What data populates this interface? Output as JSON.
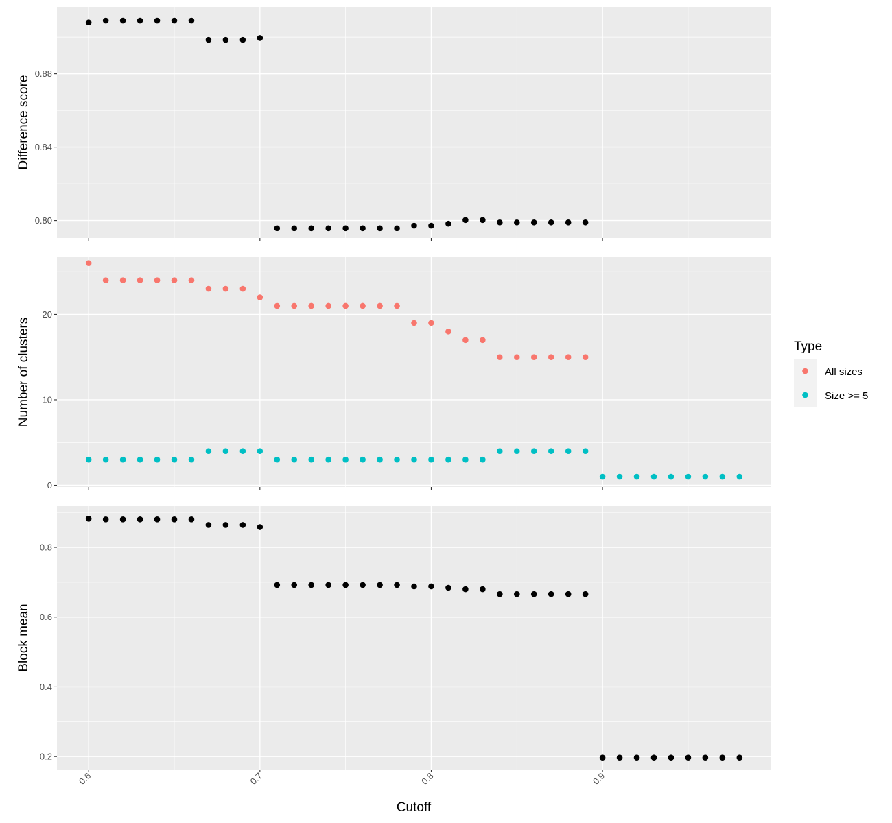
{
  "chart_data": {
    "type": "scatter",
    "xlabel": "Cutoff",
    "x_ticks": [
      0.6,
      0.7,
      0.8,
      0.9
    ],
    "x_tick_labels": [
      "0.6",
      "0.7",
      "0.8",
      "0.9"
    ],
    "xlim": [
      0.5815,
      0.9985
    ],
    "grid": true,
    "panel_background": "#ebebeb",
    "legend": {
      "title": "Type",
      "placement": "right",
      "entries": [
        {
          "label": "All sizes",
          "color": "#f8766d"
        },
        {
          "label": "Size >= 5",
          "color": "#00bfc4"
        }
      ]
    },
    "panels": [
      {
        "ylabel": "Difference score",
        "ylim": [
          0.7905,
          0.9165
        ],
        "y_ticks": [
          0.8,
          0.84,
          0.88
        ],
        "y_tick_labels": [
          "0.80",
          "0.84",
          "0.88"
        ],
        "series": [
          {
            "color": "#000000",
            "points": [
              [
                0.6,
                0.908
              ],
              [
                0.61,
                0.909
              ],
              [
                0.62,
                0.909
              ],
              [
                0.63,
                0.909
              ],
              [
                0.64,
                0.909
              ],
              [
                0.65,
                0.909
              ],
              [
                0.66,
                0.909
              ],
              [
                0.67,
                0.8985
              ],
              [
                0.68,
                0.8985
              ],
              [
                0.69,
                0.8985
              ],
              [
                0.7,
                0.8995
              ],
              [
                0.71,
                0.7958
              ],
              [
                0.72,
                0.7958
              ],
              [
                0.73,
                0.7958
              ],
              [
                0.74,
                0.7958
              ],
              [
                0.75,
                0.7958
              ],
              [
                0.76,
                0.7958
              ],
              [
                0.77,
                0.7958
              ],
              [
                0.78,
                0.7958
              ],
              [
                0.79,
                0.7972
              ],
              [
                0.8,
                0.7972
              ],
              [
                0.81,
                0.7983
              ],
              [
                0.82,
                0.8003
              ],
              [
                0.83,
                0.8003
              ],
              [
                0.84,
                0.799
              ],
              [
                0.85,
                0.799
              ],
              [
                0.86,
                0.799
              ],
              [
                0.87,
                0.799
              ],
              [
                0.88,
                0.799
              ],
              [
                0.89,
                0.799
              ]
            ]
          }
        ]
      },
      {
        "ylabel": "Number of clusters",
        "ylim": [
          -0.2,
          26.7
        ],
        "y_ticks": [
          0,
          10,
          20
        ],
        "y_tick_labels": [
          "0",
          "10",
          "20"
        ],
        "series": [
          {
            "name": "All sizes",
            "color": "#f8766d",
            "points": [
              [
                0.6,
                26
              ],
              [
                0.61,
                24
              ],
              [
                0.62,
                24
              ],
              [
                0.63,
                24
              ],
              [
                0.64,
                24
              ],
              [
                0.65,
                24
              ],
              [
                0.66,
                24
              ],
              [
                0.67,
                23
              ],
              [
                0.68,
                23
              ],
              [
                0.69,
                23
              ],
              [
                0.7,
                22
              ],
              [
                0.71,
                21
              ],
              [
                0.72,
                21
              ],
              [
                0.73,
                21
              ],
              [
                0.74,
                21
              ],
              [
                0.75,
                21
              ],
              [
                0.76,
                21
              ],
              [
                0.77,
                21
              ],
              [
                0.78,
                21
              ],
              [
                0.79,
                19
              ],
              [
                0.8,
                19
              ],
              [
                0.81,
                18
              ],
              [
                0.82,
                17
              ],
              [
                0.83,
                17
              ],
              [
                0.84,
                15
              ],
              [
                0.85,
                15
              ],
              [
                0.86,
                15
              ],
              [
                0.87,
                15
              ],
              [
                0.88,
                15
              ],
              [
                0.89,
                15
              ]
            ]
          },
          {
            "name": "Size >= 5",
            "color": "#00bfc4",
            "points": [
              [
                0.6,
                3
              ],
              [
                0.61,
                3
              ],
              [
                0.62,
                3
              ],
              [
                0.63,
                3
              ],
              [
                0.64,
                3
              ],
              [
                0.65,
                3
              ],
              [
                0.66,
                3
              ],
              [
                0.67,
                4
              ],
              [
                0.68,
                4
              ],
              [
                0.69,
                4
              ],
              [
                0.7,
                4
              ],
              [
                0.71,
                3
              ],
              [
                0.72,
                3
              ],
              [
                0.73,
                3
              ],
              [
                0.74,
                3
              ],
              [
                0.75,
                3
              ],
              [
                0.76,
                3
              ],
              [
                0.77,
                3
              ],
              [
                0.78,
                3
              ],
              [
                0.79,
                3
              ],
              [
                0.8,
                3
              ],
              [
                0.81,
                3
              ],
              [
                0.82,
                3
              ],
              [
                0.83,
                3
              ],
              [
                0.84,
                4
              ],
              [
                0.85,
                4
              ],
              [
                0.86,
                4
              ],
              [
                0.87,
                4
              ],
              [
                0.88,
                4
              ],
              [
                0.89,
                4
              ],
              [
                0.9,
                1
              ],
              [
                0.91,
                1
              ],
              [
                0.92,
                1
              ],
              [
                0.93,
                1
              ],
              [
                0.94,
                1
              ],
              [
                0.95,
                1
              ],
              [
                0.96,
                1
              ],
              [
                0.97,
                1
              ],
              [
                0.98,
                1
              ]
            ]
          }
        ]
      },
      {
        "ylabel": "Block mean",
        "ylim": [
          0.163,
          0.918
        ],
        "y_ticks": [
          0.2,
          0.4,
          0.6,
          0.8
        ],
        "y_tick_labels": [
          "0.2",
          "0.4",
          "0.6",
          "0.8"
        ],
        "series": [
          {
            "color": "#000000",
            "points": [
              [
                0.6,
                0.882
              ],
              [
                0.61,
                0.88
              ],
              [
                0.62,
                0.88
              ],
              [
                0.63,
                0.88
              ],
              [
                0.64,
                0.88
              ],
              [
                0.65,
                0.88
              ],
              [
                0.66,
                0.88
              ],
              [
                0.67,
                0.864
              ],
              [
                0.68,
                0.864
              ],
              [
                0.69,
                0.864
              ],
              [
                0.7,
                0.858
              ],
              [
                0.71,
                0.692
              ],
              [
                0.72,
                0.692
              ],
              [
                0.73,
                0.692
              ],
              [
                0.74,
                0.692
              ],
              [
                0.75,
                0.692
              ],
              [
                0.76,
                0.692
              ],
              [
                0.77,
                0.692
              ],
              [
                0.78,
                0.692
              ],
              [
                0.79,
                0.688
              ],
              [
                0.8,
                0.688
              ],
              [
                0.81,
                0.684
              ],
              [
                0.82,
                0.68
              ],
              [
                0.83,
                0.68
              ],
              [
                0.84,
                0.666
              ],
              [
                0.85,
                0.666
              ],
              [
                0.86,
                0.666
              ],
              [
                0.87,
                0.666
              ],
              [
                0.88,
                0.666
              ],
              [
                0.89,
                0.666
              ],
              [
                0.9,
                0.197
              ],
              [
                0.91,
                0.197
              ],
              [
                0.92,
                0.197
              ],
              [
                0.93,
                0.197
              ],
              [
                0.94,
                0.197
              ],
              [
                0.95,
                0.197
              ],
              [
                0.96,
                0.197
              ],
              [
                0.97,
                0.197
              ],
              [
                0.98,
                0.197
              ]
            ]
          }
        ]
      }
    ]
  }
}
